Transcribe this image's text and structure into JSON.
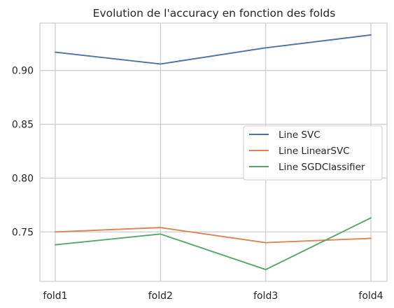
{
  "chart_data": {
    "type": "line",
    "title": "Evolution de l'accuracy en fonction des folds",
    "xlabel": "",
    "ylabel": "",
    "categories": [
      "fold1",
      "fold2",
      "fold3",
      "fold4"
    ],
    "y_ticks": [
      "0.75",
      "0.80",
      "0.85",
      "0.90"
    ],
    "ylim": [
      0.704,
      0.944
    ],
    "grid": true,
    "legend_position": "center-right",
    "series": [
      {
        "name": "Line SVC",
        "color": "#4C72B0",
        "values": [
          0.917,
          0.906,
          0.921,
          0.933
        ]
      },
      {
        "name": "Line LinearSVC",
        "color": "#DD8452",
        "values": [
          0.75,
          0.754,
          0.74,
          0.744
        ]
      },
      {
        "name": "Line SGDClassifier",
        "color": "#55A868",
        "values": [
          0.738,
          0.748,
          0.715,
          0.763
        ]
      }
    ]
  }
}
